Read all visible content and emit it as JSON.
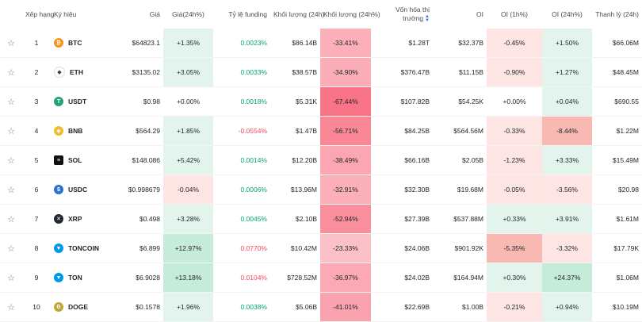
{
  "headers": {
    "rank": "Xếp hạng",
    "symbol": "Ký hiệu",
    "price": "Giá",
    "price24h": "Giá(24h%)",
    "funding": "Tỷ lệ funding",
    "volume24h": "Khối lượng (24h)",
    "volume24hpct": "Khối lượng (24h%)",
    "mcap": "Vốn hóa thị trường",
    "oi": "OI",
    "oi1h": "OI (1h%)",
    "oi24h": "OI (24h%)",
    "liq24h": "Thanh lý (24h)"
  },
  "colors": {
    "green_cell": "#e3f4ec",
    "green_strong": "#c5ebd9",
    "red_cell": "#fde5e4",
    "red_strong": "#f9b9b3",
    "funding_positive": "#03a66d",
    "funding_negative": "#f6465d"
  },
  "rows": [
    {
      "rank": "1",
      "symbol": "BTC",
      "icon": "bitcoin-icon",
      "price": "$64823.1",
      "price24h": "+1.35%",
      "funding": "0.0023%",
      "volume": "$86.14B",
      "volumepct": "-33.41%",
      "mcap": "$1.28T",
      "oi": "$32.37B",
      "oi1h": "-0.45%",
      "oi24h": "+1.50%",
      "liq": "$66.06M"
    },
    {
      "rank": "2",
      "symbol": "ETH",
      "icon": "ethereum-icon",
      "price": "$3135.02",
      "price24h": "+3.05%",
      "funding": "0.0033%",
      "volume": "$38.57B",
      "volumepct": "-34.90%",
      "mcap": "$376.47B",
      "oi": "$11.15B",
      "oi1h": "-0.90%",
      "oi24h": "+1.27%",
      "liq": "$48.45M"
    },
    {
      "rank": "3",
      "symbol": "USDT",
      "icon": "tether-icon",
      "price": "$0.98",
      "price24h": "+0.00%",
      "funding": "0.0018%",
      "volume": "$5.31K",
      "volumepct": "-67.44%",
      "mcap": "$107.82B",
      "oi": "$54.25K",
      "oi1h": "+0.00%",
      "oi24h": "+0.04%",
      "liq": "$690.55"
    },
    {
      "rank": "4",
      "symbol": "BNB",
      "icon": "bnb-icon",
      "price": "$564.29",
      "price24h": "+1.85%",
      "funding": "-0.0554%",
      "volume": "$1.47B",
      "volumepct": "-56.71%",
      "mcap": "$84.25B",
      "oi": "$564.56M",
      "oi1h": "-0.33%",
      "oi24h": "-8.44%",
      "liq": "$1.22M"
    },
    {
      "rank": "5",
      "symbol": "SOL",
      "icon": "solana-icon",
      "price": "$148.086",
      "price24h": "+5.42%",
      "funding": "0.0014%",
      "volume": "$12.20B",
      "volumepct": "-38.49%",
      "mcap": "$66.16B",
      "oi": "$2.05B",
      "oi1h": "-1.23%",
      "oi24h": "+3.33%",
      "liq": "$15.49M"
    },
    {
      "rank": "6",
      "symbol": "USDC",
      "icon": "usdc-icon",
      "price": "$0.998679",
      "price24h": "-0.04%",
      "funding": "0.0006%",
      "volume": "$13.96M",
      "volumepct": "-32.91%",
      "mcap": "$32.30B",
      "oi": "$19.68M",
      "oi1h": "-0.05%",
      "oi24h": "-3.56%",
      "liq": "$20.98"
    },
    {
      "rank": "7",
      "symbol": "XRP",
      "icon": "xrp-icon",
      "price": "$0.498",
      "price24h": "+3.28%",
      "funding": "0.0045%",
      "volume": "$2.10B",
      "volumepct": "-52.94%",
      "mcap": "$27.39B",
      "oi": "$537.88M",
      "oi1h": "+0.33%",
      "oi24h": "+3.91%",
      "liq": "$1.61M"
    },
    {
      "rank": "8",
      "symbol": "TONCOIN",
      "icon": "toncoin-icon",
      "price": "$6.899",
      "price24h": "+12.97%",
      "funding": "0.0770%",
      "volume": "$10.42M",
      "volumepct": "-23.33%",
      "mcap": "$24.06B",
      "oi": "$901.92K",
      "oi1h": "-5.35%",
      "oi24h": "-3.32%",
      "liq": "$17.79K"
    },
    {
      "rank": "9",
      "symbol": "TON",
      "icon": "ton-icon",
      "price": "$6.9028",
      "price24h": "+13.18%",
      "funding": "0.0104%",
      "volume": "$728.52M",
      "volumepct": "-36.97%",
      "mcap": "$24.02B",
      "oi": "$164.94M",
      "oi1h": "+0.30%",
      "oi24h": "+24.37%",
      "liq": "$1.06M"
    },
    {
      "rank": "10",
      "symbol": "DOGE",
      "icon": "dogecoin-icon",
      "price": "$0.1578",
      "price24h": "+1.96%",
      "funding": "0.0038%",
      "volume": "$5.06B",
      "volumepct": "-41.01%",
      "mcap": "$22.69B",
      "oi": "$1.00B",
      "oi1h": "-0.21%",
      "oi24h": "+0.94%",
      "liq": "$10.19M"
    }
  ]
}
